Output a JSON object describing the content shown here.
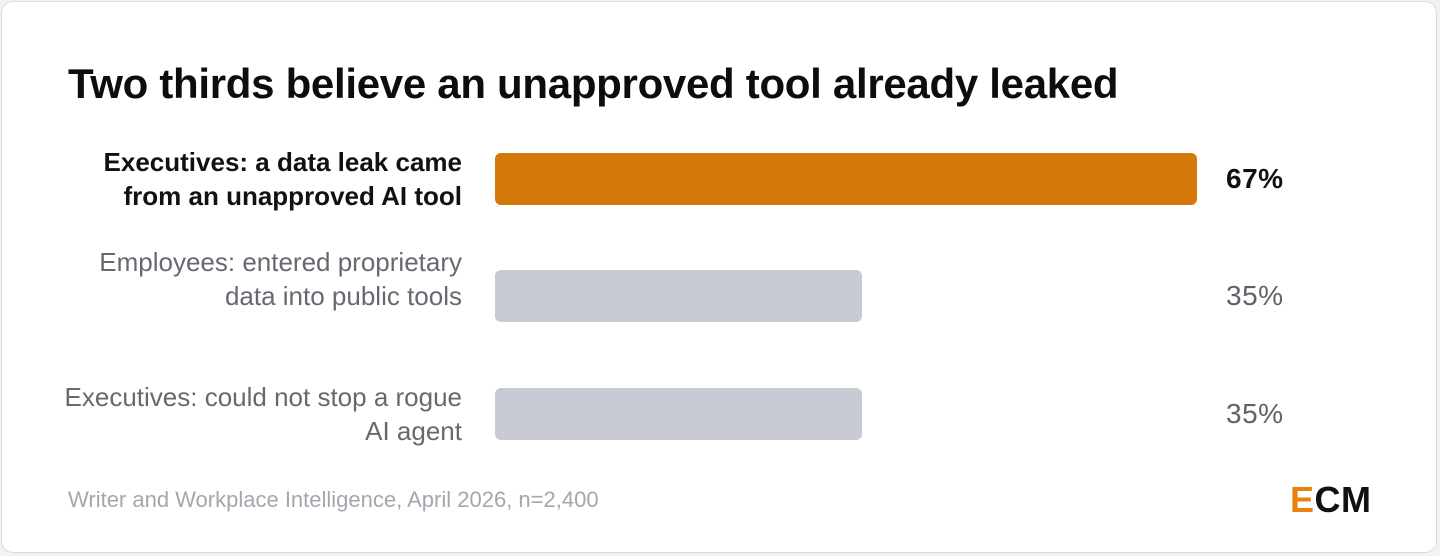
{
  "title": "Two thirds believe an unapproved tool already leaked",
  "source": "Writer and Workplace Intelligence, April 2026, n=2,400",
  "logo": {
    "first": "E",
    "rest": "CM"
  },
  "colors": {
    "highlight_bar": "#d4780a",
    "default_bar": "#c8cbd3",
    "logo_accent": "#e8820c"
  },
  "chart_data": {
    "type": "bar",
    "orientation": "horizontal",
    "title": "Two thirds believe an unapproved tool already leaked",
    "categories": [
      "Executives: a data leak came from an unapproved AI tool",
      "Employees: entered proprietary data into public tools",
      "Executives: could not stop a rogue AI agent"
    ],
    "values": [
      67,
      35,
      35
    ],
    "value_labels": [
      "67%",
      "35%",
      "35%"
    ],
    "highlighted": [
      true,
      false,
      false
    ],
    "unit": "%",
    "xlim": [
      0,
      67
    ],
    "grid": false,
    "legend": "none"
  }
}
